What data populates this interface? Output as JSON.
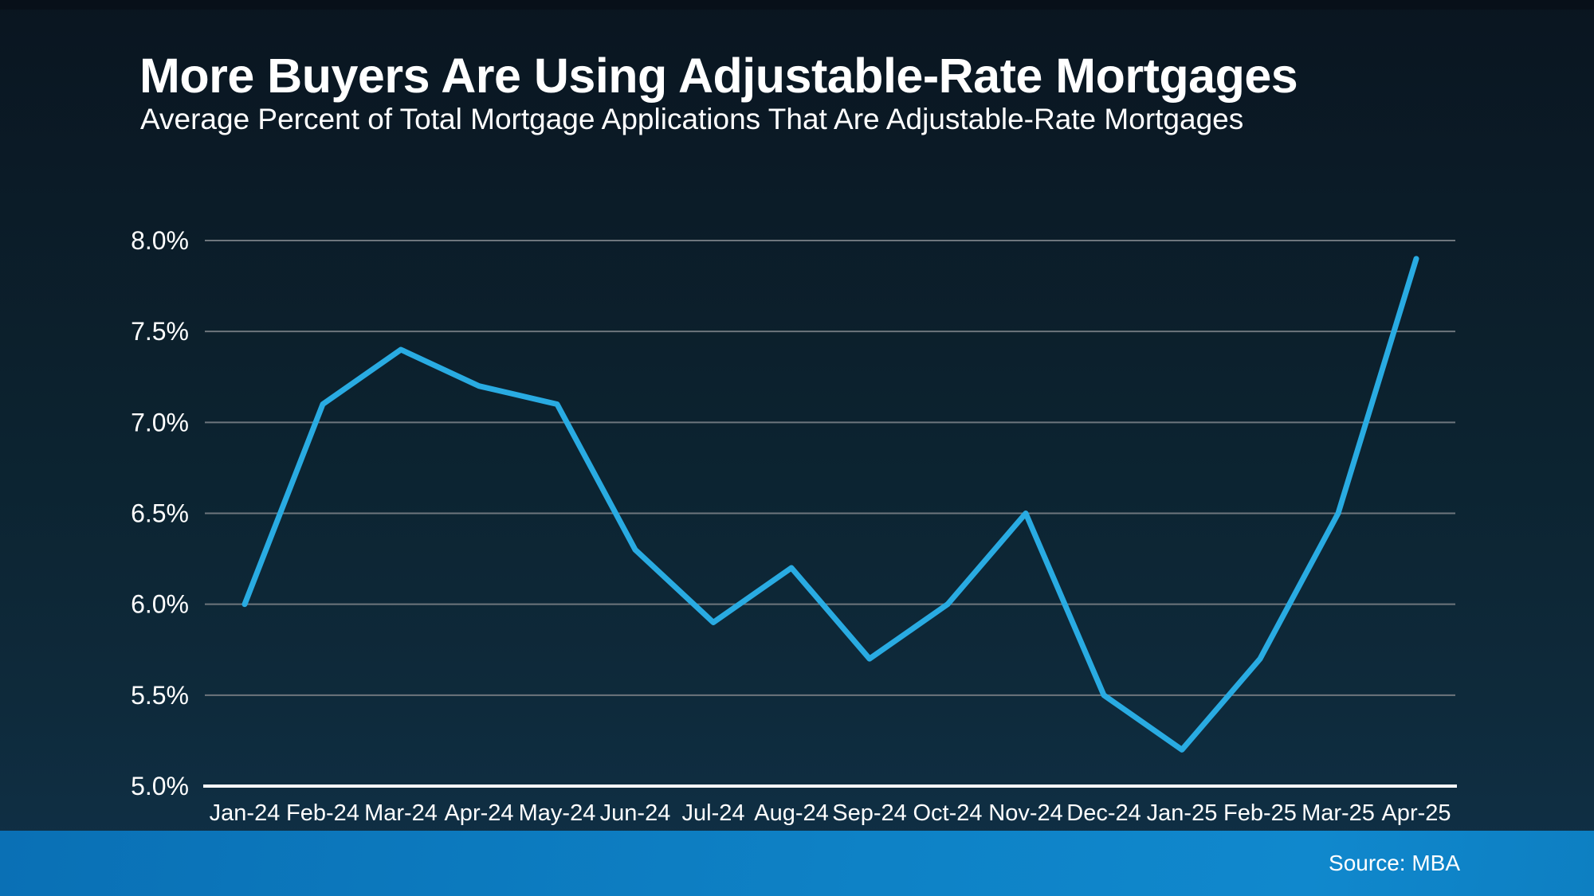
{
  "colors": {
    "background_top": "#0A1520",
    "background_bottom": "#103148",
    "line": "#29ABE2",
    "gridline": "#6E767D",
    "axis_line": "#FFFFFF",
    "text": "#FFFFFF",
    "footer_gradient_left": "#0A70B5",
    "footer_gradient_right": "#1088CD"
  },
  "chart_data": {
    "type": "line",
    "title": "More Buyers Are Using Adjustable-Rate Mortgages",
    "subtitle": "Average Percent of Total Mortgage Applications That Are Adjustable-Rate Mortgages",
    "source_label": "Source: MBA",
    "categories": [
      "Jan-24",
      "Feb-24",
      "Mar-24",
      "Apr-24",
      "May-24",
      "Jun-24",
      "Jul-24",
      "Aug-24",
      "Sep-24",
      "Oct-24",
      "Nov-24",
      "Dec-24",
      "Jan-25",
      "Feb-25",
      "Mar-25",
      "Apr-25"
    ],
    "values": [
      6.0,
      7.1,
      7.4,
      7.2,
      7.1,
      6.3,
      5.9,
      6.2,
      5.7,
      6.0,
      6.5,
      5.5,
      5.2,
      5.7,
      6.5,
      7.9
    ],
    "ylim": [
      5.0,
      8.0
    ],
    "ytick_step": 0.5,
    "yticks": [
      "8.0%",
      "7.5%",
      "7.0%",
      "6.5%",
      "6.0%",
      "5.5%",
      "5.0%"
    ],
    "xlabel": "",
    "ylabel": "",
    "grid": true,
    "legend": false
  }
}
